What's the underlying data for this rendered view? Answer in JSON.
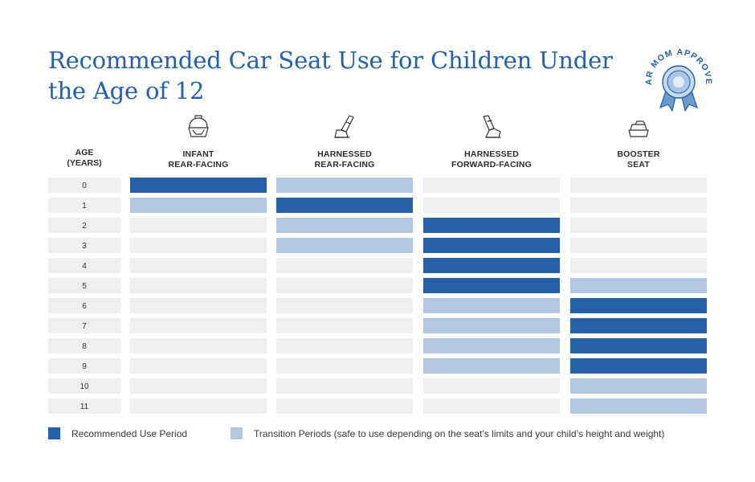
{
  "title": "Recommended Car Seat Use for Children Under the Age of 12",
  "badge_text": "CAR MOM APPROVED",
  "colors": {
    "recommended": "#2560a8",
    "transition": "#b3c8e0",
    "empty": "#f0eeef",
    "title": "#2560a8"
  },
  "legend": {
    "recommended": "Recommended Use Period",
    "transition": "Transition Periods (safe to use depending on the seat’s limits and your child’s height and weight)"
  },
  "chart_data": {
    "type": "table",
    "row_header": {
      "line1": "AGE",
      "line2": "(YEARS)"
    },
    "ages": [
      "0",
      "1",
      "2",
      "3",
      "4",
      "5",
      "6",
      "7",
      "8",
      "9",
      "10",
      "11"
    ],
    "columns": [
      {
        "line1": "INFANT",
        "line2": "REAR-FACING",
        "icon": "infant-seat-icon",
        "cells": [
          "recommended",
          "transition",
          "none",
          "none",
          "none",
          "none",
          "none",
          "none",
          "none",
          "none",
          "none",
          "none"
        ]
      },
      {
        "line1": "HARNESSED",
        "line2": "REAR-FACING",
        "icon": "rear-facing-seat-icon",
        "cells": [
          "transition",
          "recommended",
          "transition",
          "transition",
          "none",
          "none",
          "none",
          "none",
          "none",
          "none",
          "none",
          "none"
        ]
      },
      {
        "line1": "HARNESSED",
        "line2": "FORWARD-FACING",
        "icon": "forward-facing-seat-icon",
        "cells": [
          "none",
          "none",
          "recommended",
          "recommended",
          "recommended",
          "recommended",
          "transition",
          "transition",
          "transition",
          "transition",
          "none",
          "none"
        ]
      },
      {
        "line1": "BOOSTER",
        "line2": "SEAT",
        "icon": "booster-seat-icon",
        "cells": [
          "none",
          "none",
          "none",
          "none",
          "none",
          "transition",
          "recommended",
          "recommended",
          "recommended",
          "recommended",
          "transition",
          "transition"
        ]
      }
    ]
  }
}
